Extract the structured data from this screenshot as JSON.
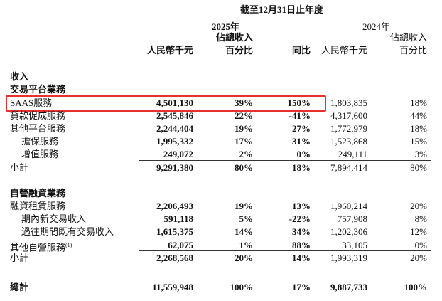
{
  "header": {
    "period": "截至12月31日止年度",
    "year_2025": "2025年",
    "year_2024": "2024年",
    "columns": [
      [
        "人民幣千元"
      ],
      [
        "佔總收入",
        "百分比"
      ],
      [
        "同比"
      ],
      [
        "人民幣千元"
      ],
      [
        "佔總收入",
        "百分比"
      ]
    ]
  },
  "table": {
    "rows": [
      {
        "label": "收入",
        "bold": true
      },
      {
        "label": "交易平台業務",
        "bold": true
      },
      {
        "label": "SAAS服務",
        "cells": [
          "4,501,130",
          "39%",
          "150%",
          "1,803,835",
          "18%"
        ],
        "highlight": true
      },
      {
        "label": "貸款促成服務",
        "cells": [
          "2,545,846",
          "22%",
          "-41%",
          "4,317,600",
          "44%"
        ]
      },
      {
        "label": "其他平台服務",
        "cells": [
          "2,244,404",
          "19%",
          "27%",
          "1,772,979",
          "18%"
        ]
      },
      {
        "label": "擔保服務",
        "indent": true,
        "cells": [
          "1,995,332",
          "17%",
          "31%",
          "1,523,868",
          "15%"
        ]
      },
      {
        "label": "增值服務",
        "indent": true,
        "cells": [
          "249,072",
          "2%",
          "0%",
          "249,111",
          "3%"
        ]
      },
      {
        "label": "小計",
        "cells": [
          "9,291,380",
          "80%",
          "18%",
          "7,894,414",
          "80%"
        ]
      },
      {
        "label": "自營融資業務",
        "bold": true
      },
      {
        "label": "融資租賃服務",
        "cells": [
          "2,206,493",
          "19%",
          "13%",
          "1,960,214",
          "20%"
        ]
      },
      {
        "label": "期內新交易收入",
        "indent": true,
        "cells": [
          "591,118",
          "5%",
          "-22%",
          "757,908",
          "8%"
        ]
      },
      {
        "label": "過往期間既有交易收入",
        "indent": true,
        "cells": [
          "1,615,375",
          "14%",
          "34%",
          "1,202,306",
          "12%"
        ]
      },
      {
        "label": "其他自營服務",
        "footnote": "(1)",
        "cells": [
          "62,075",
          "1%",
          "88%",
          "33,105",
          "0%"
        ]
      },
      {
        "label": "小計",
        "cells": [
          "2,268,568",
          "20%",
          "14%",
          "1,993,319",
          "20%"
        ]
      },
      {
        "label": "總計",
        "bold": true,
        "cells": [
          "11,559,948",
          "100%",
          "17%",
          "9,887,733",
          "100%"
        ]
      }
    ]
  }
}
